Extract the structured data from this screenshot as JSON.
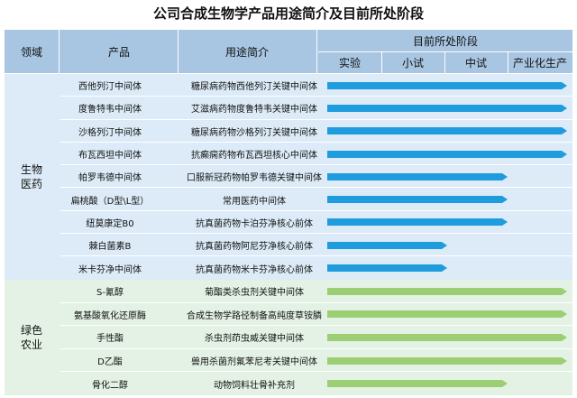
{
  "title": "公司合成生物学产品用途简介及目前所处阶段",
  "headers": {
    "field": "领域",
    "product": "产品",
    "use": "用途简介",
    "stage_group": "目前所处阶段",
    "stages": [
      "实验",
      "小试",
      "中试",
      "产业化生产"
    ]
  },
  "colors": {
    "header_bg": "#a8c6e2",
    "bio_bg": "#dcebf7",
    "green_bg": "#e3f2e5",
    "bio_bar": "#1f9cde",
    "green_bar": "#9ccf74"
  },
  "sections": [
    {
      "label": "生物医药",
      "rows": [
        {
          "product": "西他列汀中间体",
          "use": "糖尿病药物西他列汀关键中间体",
          "stage_progress": 1.0
        },
        {
          "product": "度鲁特韦中间体",
          "use": "艾滋病药物度鲁特韦关键中间体",
          "stage_progress": 1.0
        },
        {
          "product": "沙格列汀中间体",
          "use": "糖尿病药物沙格列汀关键中间体",
          "stage_progress": 1.0
        },
        {
          "product": "布瓦西坦中间体",
          "use": "抗癫痫药物布瓦西坦核心中间体",
          "stage_progress": 1.0
        },
        {
          "product": "帕罗韦德中间体",
          "use": "口服新冠药物帕罗韦德关键中间体",
          "stage_progress": 0.75
        },
        {
          "product": "扁桃酸（D型\\L型）",
          "use": "常用医药中间体",
          "stage_progress": 0.75
        },
        {
          "product": "纽莫康定B0",
          "use": "抗真菌药物卡泊芬净核心前体",
          "stage_progress": 0.75
        },
        {
          "product": "棘白菌素B",
          "use": "抗真菌药物阿尼芬净核心前体",
          "stage_progress": 0.5
        },
        {
          "product": "米卡芬净中间体",
          "use": "抗真菌药物米卡芬净核心前体",
          "stage_progress": 0.5
        }
      ]
    },
    {
      "label": "绿色农业",
      "rows": [
        {
          "product": "S-氰醇",
          "use": "菊酯类杀虫剂关键中间体",
          "stage_progress": 1.0
        },
        {
          "product": "氨基酸氧化还原酶",
          "use": "合成生物学路径制备高纯度草铵膦",
          "stage_progress": 1.0
        },
        {
          "product": "手性酯",
          "use": "杀虫剂茚虫威关键中间体",
          "stage_progress": 1.0
        },
        {
          "product": "D乙酯",
          "use": "兽用杀菌剂氟苯尼考关键中间体",
          "stage_progress": 1.0
        },
        {
          "product": "骨化二醇",
          "use": "动物饲料壮骨补充剂",
          "stage_progress": 0.75
        }
      ]
    }
  ]
}
